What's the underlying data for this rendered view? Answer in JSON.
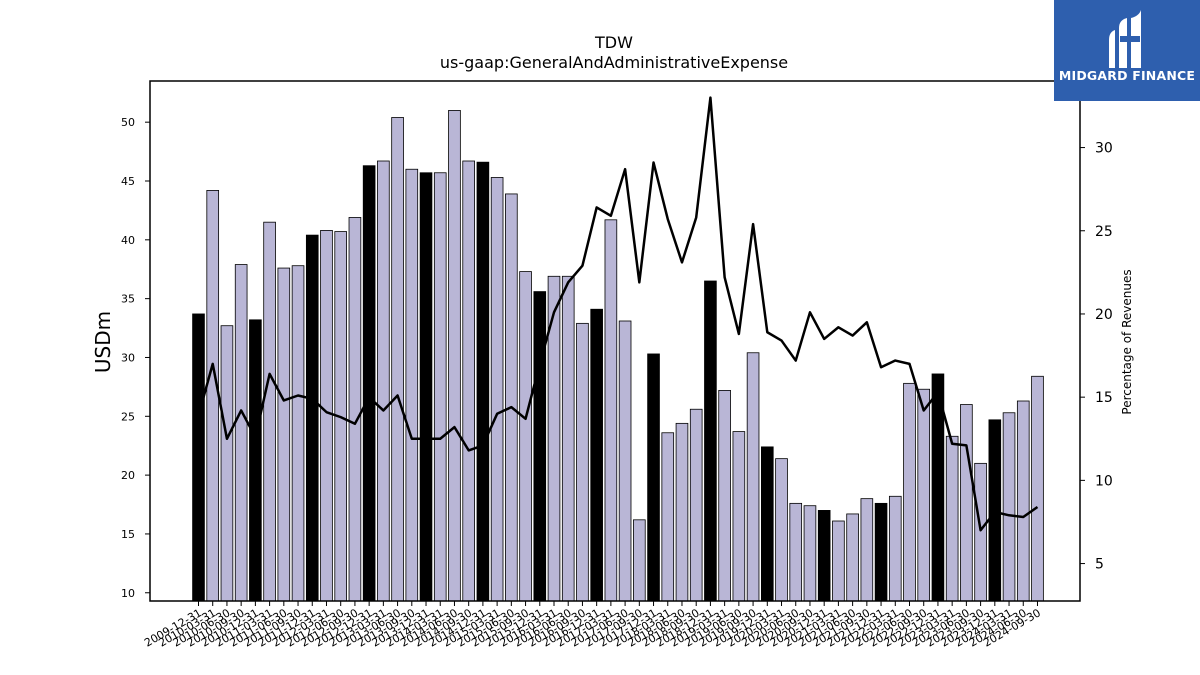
{
  "brand": {
    "name": "MIDGARD FINANCE",
    "icon": "midgard-logo-icon",
    "bg_color": "#2e5fae"
  },
  "chart_data": {
    "type": "bar",
    "title": "TDW",
    "subtitle": "us-gaap:GeneralAndAdministrativeExpense",
    "ylabel": "USDm",
    "y2label": "Percentage of Revenues",
    "ylim": [
      9.3,
      53.5
    ],
    "y2lim": [
      2.75,
      34.0
    ],
    "yticks": [
      10,
      15,
      20,
      25,
      30,
      35,
      40,
      45,
      50
    ],
    "y2ticks": [
      5,
      10,
      15,
      20,
      25,
      30
    ],
    "grid": false,
    "colors": {
      "annual_bar": "#000000",
      "quarter_bar": "#b9b6d6",
      "line": "#000000"
    },
    "categories": [
      "2009-12-31",
      "2010-03-31",
      "2010-06-30",
      "2010-09-30",
      "2010-12-31",
      "2011-03-31",
      "2011-06-30",
      "2011-09-30",
      "2011-12-31",
      "2012-03-31",
      "2012-06-30",
      "2012-09-30",
      "2012-12-31",
      "2013-03-31",
      "2013-06-30",
      "2013-09-30",
      "2013-12-31",
      "2014-03-31",
      "2014-06-30",
      "2014-09-30",
      "2014-12-31",
      "2015-03-31",
      "2015-06-30",
      "2015-09-30",
      "2015-12-31",
      "2016-03-31",
      "2016-06-30",
      "2016-09-30",
      "2016-12-31",
      "2017-03-31",
      "2017-06-30",
      "2017-09-30",
      "2017-12-31",
      "2018-03-31",
      "2018-06-30",
      "2018-09-30",
      "2018-12-31",
      "2019-03-31",
      "2019-06-30",
      "2019-09-30",
      "2019-12-31",
      "2020-03-31",
      "2020-06-30",
      "2020-09-30",
      "2020-12-31",
      "2021-03-31",
      "2021-06-30",
      "2021-09-30",
      "2021-12-31",
      "2022-03-31",
      "2022-06-30",
      "2022-09-30",
      "2022-12-31",
      "2023-03-31",
      "2023-06-30",
      "2023-09-30",
      "2023-12-31",
      "2024-03-31",
      "2024-06-30",
      "2024-09-30"
    ],
    "series": [
      {
        "kind": "bar",
        "values": [
          33.7,
          44.2,
          32.7,
          37.9,
          33.2,
          41.5,
          37.6,
          37.8,
          40.4,
          40.8,
          40.7,
          41.9,
          46.3,
          46.7,
          50.4,
          46.0,
          45.7,
          45.7,
          51.0,
          46.7,
          46.6,
          45.3,
          43.9,
          37.3,
          35.6,
          36.9,
          36.9,
          32.9,
          34.1,
          41.7,
          33.1,
          16.2,
          30.3,
          23.6,
          24.4,
          25.6,
          36.5,
          27.2,
          23.7,
          30.4,
          22.4,
          21.4,
          17.6,
          17.4,
          17.0,
          16.1,
          16.7,
          18.0,
          17.6,
          18.2,
          27.8,
          27.3,
          28.6,
          23.3,
          26.0,
          21.0,
          24.7,
          25.3,
          26.3,
          28.4
        ],
        "highlight": [
          true,
          false,
          false,
          false,
          true,
          false,
          false,
          false,
          true,
          false,
          false,
          false,
          true,
          false,
          false,
          false,
          true,
          false,
          false,
          false,
          true,
          false,
          false,
          false,
          true,
          false,
          false,
          false,
          true,
          false,
          false,
          false,
          true,
          false,
          false,
          false,
          true,
          false,
          false,
          false,
          true,
          false,
          false,
          false,
          true,
          false,
          false,
          false,
          true,
          false,
          false,
          false,
          true,
          false,
          false,
          false,
          true,
          false,
          false,
          false
        ]
      },
      {
        "kind": "line",
        "axis": "right",
        "values": [
          13.9,
          17.0,
          12.5,
          14.2,
          12.6,
          16.4,
          14.8,
          15.1,
          14.9,
          14.1,
          13.8,
          13.4,
          15.0,
          14.2,
          15.1,
          12.5,
          12.5,
          12.5,
          13.2,
          11.8,
          12.1,
          14.0,
          14.4,
          13.7,
          17.0,
          20.1,
          21.9,
          22.9,
          26.4,
          25.9,
          28.7,
          21.9,
          29.1,
          25.7,
          23.1,
          25.8,
          33.0,
          22.2,
          18.8,
          25.4,
          18.9,
          18.4,
          17.2,
          20.1,
          18.5,
          19.2,
          18.7,
          19.5,
          16.8,
          17.2,
          17.0,
          14.2,
          15.3,
          12.2,
          12.1,
          7.0,
          8.1,
          7.9,
          7.8,
          8.4
        ]
      }
    ]
  }
}
